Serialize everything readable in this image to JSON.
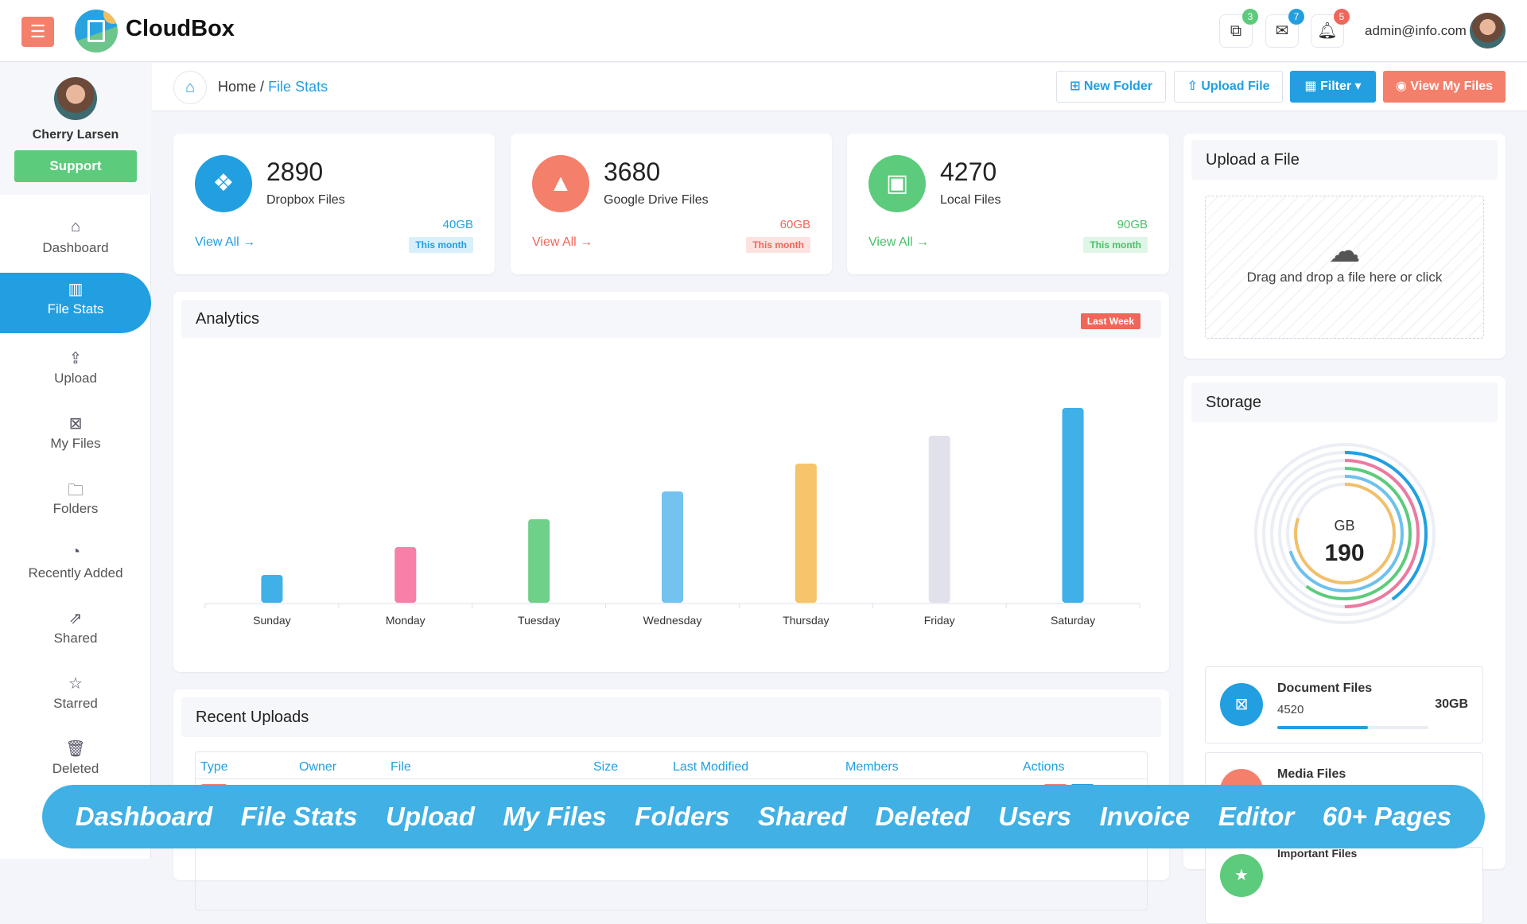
{
  "app": {
    "brand": "CloudBox",
    "user_email": "admin@info.com"
  },
  "header": {
    "icons": [
      {
        "name": "share-icon",
        "badge": "3",
        "color": "#5ccb7b"
      },
      {
        "name": "mail-icon",
        "badge": "7",
        "color": "#229fe0"
      },
      {
        "name": "bell-icon",
        "badge": "5",
        "color": "#f1665a"
      }
    ]
  },
  "sidebar": {
    "profile_name": "Cherry Larsen",
    "support_label": "Support",
    "items": [
      {
        "label": "Dashboard",
        "icon": "home-icon"
      },
      {
        "label": "File Stats",
        "icon": "chart-folder-icon",
        "active": true
      },
      {
        "label": "Upload",
        "icon": "upload-icon"
      },
      {
        "label": "My Files",
        "icon": "file-icon"
      },
      {
        "label": "Folders",
        "icon": "folder-icon"
      },
      {
        "label": "Recently Added",
        "icon": "recent-icon"
      },
      {
        "label": "Shared",
        "icon": "share-icon"
      },
      {
        "label": "Starred",
        "icon": "star-icon"
      },
      {
        "label": "Deleted",
        "icon": "trash-icon"
      }
    ]
  },
  "breadcrumb": {
    "home": "Home",
    "sep": "/",
    "current": "File Stats"
  },
  "toolbar": {
    "new_folder": "New Folder",
    "upload_file": "Upload File",
    "filter": "Filter",
    "view_my_files": "View My Files"
  },
  "stats": [
    {
      "count": "2890",
      "label": "Dropbox Files",
      "view_all": "View All",
      "size": "40GB",
      "period": "This month",
      "color": "#229fe0",
      "tag_bg": "#d9effb"
    },
    {
      "count": "3680",
      "label": "Google Drive Files",
      "view_all": "View All",
      "size": "60GB",
      "period": "This month",
      "color": "#f1665a",
      "tag_bg": "#fde3e0"
    },
    {
      "count": "4270",
      "label": "Local Files",
      "view_all": "View All",
      "size": "90GB",
      "period": "This month",
      "color": "#5ccb7b",
      "tag_bg": "#dff5e6"
    }
  ],
  "analytics": {
    "title": "Analytics",
    "badge": "Last Week"
  },
  "chart_data": {
    "type": "bar",
    "categories": [
      "Sunday",
      "Monday",
      "Tuesday",
      "Wednesday",
      "Thursday",
      "Friday",
      "Saturday"
    ],
    "values": [
      10,
      20,
      30,
      40,
      50,
      60,
      70
    ],
    "colors": [
      "#3fb0e8",
      "#f77fa8",
      "#6fd089",
      "#74c3ef",
      "#f7c46c",
      "#e1e1ec",
      "#3fb0e8"
    ],
    "grid": false
  },
  "upload": {
    "title": "Upload a File",
    "dropzone": "Drag and drop a file here or click"
  },
  "storage": {
    "title": "Storage",
    "unit": "GB",
    "total": "190",
    "rings": [
      {
        "color": "#229fe0",
        "fraction": 0.4
      },
      {
        "color": "#ec7aa0",
        "fraction": 0.5
      },
      {
        "color": "#5ccb7b",
        "fraction": 0.6
      },
      {
        "color": "#6ec1ec",
        "fraction": 0.7
      },
      {
        "color": "#f0c06a",
        "fraction": 0.8
      }
    ],
    "files": [
      {
        "label": "Document Files",
        "count": "4520",
        "size": "30GB",
        "progress": 0.6,
        "color": "#229fe0"
      },
      {
        "label": "Media Files",
        "color": "#f47f6b"
      },
      {
        "label": "Important Files",
        "color": "#5ccb7b"
      }
    ]
  },
  "recent": {
    "title": "Recent Uploads",
    "columns": [
      "Type",
      "Owner",
      "File",
      "Size",
      "Last Modified",
      "Members",
      "Actions"
    ]
  },
  "banner": [
    "Dashboard",
    "File Stats",
    "Upload",
    "My Files",
    "Folders",
    "Shared",
    "Deleted",
    "Users",
    "Invoice",
    "Editor",
    "60+ Pages"
  ]
}
